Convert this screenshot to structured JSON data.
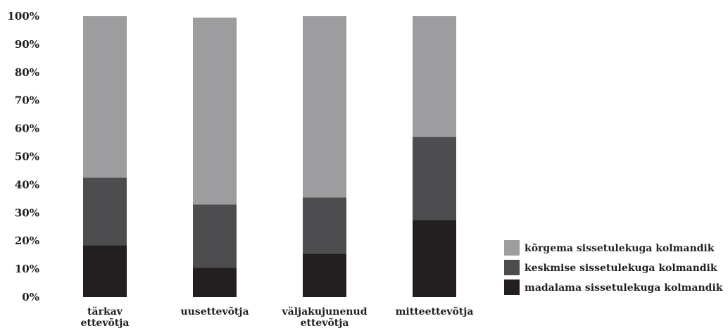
{
  "chart_data": {
    "type": "bar",
    "stacked": true,
    "categories": [
      [
        "tärkav",
        "ettevõtja"
      ],
      [
        "uusettevõtja"
      ],
      [
        "väljakujunenud",
        "ettevõtja"
      ],
      [
        "mitteettevõtja"
      ]
    ],
    "series": [
      {
        "name": "madalama sissetulekuga kolmandik",
        "color": "#231f20",
        "values": [
          18.5,
          10.5,
          15.5,
          27.5
        ]
      },
      {
        "name": "keskmise sissetulekuga kolmandik",
        "color": "#4d4d4f",
        "values": [
          24.0,
          22.5,
          20.0,
          29.5
        ]
      },
      {
        "name": "kõrgema sissetulekuga kolmandik",
        "color": "#9d9d9f",
        "values": [
          57.5,
          66.5,
          64.5,
          43.0
        ]
      }
    ],
    "legend_order": [
      2,
      1,
      0
    ],
    "yticks": [
      "0%",
      "10%",
      "20%",
      "30%",
      "40%",
      "50%",
      "60%",
      "70%",
      "80%",
      "90%",
      "100%"
    ],
    "ylim": [
      0,
      100
    ],
    "grid": false,
    "legend_position": "right"
  }
}
